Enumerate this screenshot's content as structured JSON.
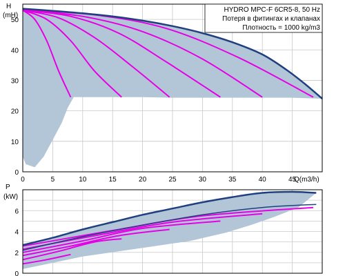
{
  "info_box": {
    "line1": "HYDRO MPC-F 6CR5-8, 50 Hz",
    "line2": "Потеря в фитингах и клапанах",
    "line3": "Плотность = 1000 kg/m3"
  },
  "chart_data": [
    {
      "type": "area",
      "title": "",
      "ylabel_top": "H",
      "ylabel_unit": "(mH)",
      "xlabel": "Q(m3/h)",
      "xlim": [
        0,
        50
      ],
      "ylim": [
        0,
        55
      ],
      "x_ticks": [
        "0",
        "5",
        "10",
        "15",
        "20",
        "25",
        "30",
        "35",
        "40",
        "45"
      ],
      "y_ticks": [
        "0",
        "10",
        "20",
        "30",
        "40",
        "50"
      ],
      "grid": true,
      "colors": {
        "envelope": "#b3c6d8",
        "max_curve": "#1f3f7f",
        "pump_curves": "#e600e6"
      },
      "envelope": {
        "upper": [
          [
            0,
            53.5
          ],
          [
            5,
            52.8
          ],
          [
            10,
            52.0
          ],
          [
            15,
            51.0
          ],
          [
            20,
            49.6
          ],
          [
            25,
            47.8
          ],
          [
            30,
            45.5
          ],
          [
            35,
            42.5
          ],
          [
            40,
            38.5
          ],
          [
            44,
            33.5
          ],
          [
            47,
            29.0
          ],
          [
            50,
            24.0
          ]
        ],
        "lower": [
          [
            50,
            24.0
          ],
          [
            45,
            24.3
          ],
          [
            25,
            24.3
          ],
          [
            20,
            24.5
          ],
          [
            15,
            24.5
          ],
          [
            10,
            24.5
          ],
          [
            8.5,
            24.5
          ],
          [
            7.5,
            21.0
          ],
          [
            6.5,
            16.0
          ],
          [
            5,
            10.5
          ],
          [
            3.5,
            5.0
          ],
          [
            2,
            1.5
          ],
          [
            0.5,
            2.5
          ],
          [
            0,
            5.0
          ]
        ]
      },
      "max_curve": [
        [
          0,
          53.5
        ],
        [
          5,
          52.8
        ],
        [
          10,
          52.0
        ],
        [
          15,
          51.0
        ],
        [
          20,
          49.6
        ],
        [
          25,
          47.8
        ],
        [
          30,
          45.5
        ],
        [
          35,
          42.5
        ],
        [
          40,
          38.5
        ],
        [
          44,
          33.5
        ],
        [
          47,
          29.0
        ],
        [
          50,
          24.0
        ]
      ],
      "series": [
        {
          "values": [
            [
              0,
              53.0
            ],
            [
              2,
              50.0
            ],
            [
              4,
              43.0
            ],
            [
              6,
              33.0
            ],
            [
              8,
              24.5
            ]
          ]
        },
        {
          "values": [
            [
              0,
              53.0
            ],
            [
              4,
              50.0
            ],
            [
              8,
              43.0
            ],
            [
              12,
              33.0
            ],
            [
              16.5,
              24.5
            ]
          ]
        },
        {
          "values": [
            [
              0,
              53.0
            ],
            [
              6,
              50.5
            ],
            [
              12,
              44.0
            ],
            [
              18,
              35.0
            ],
            [
              24.5,
              24.5
            ]
          ]
        },
        {
          "values": [
            [
              0,
              53.0
            ],
            [
              8,
              51.0
            ],
            [
              16,
              45.5
            ],
            [
              24,
              36.0
            ],
            [
              33,
              24.5
            ]
          ]
        },
        {
          "values": [
            [
              0,
              53.0
            ],
            [
              10,
              51.0
            ],
            [
              20,
              46.0
            ],
            [
              30,
              37.0
            ],
            [
              40,
              24.5
            ]
          ]
        },
        {
          "values": [
            [
              0,
              53.0
            ],
            [
              12,
              51.5
            ],
            [
              24,
              47.0
            ],
            [
              36,
              37.5
            ],
            [
              48.5,
              24.5
            ]
          ]
        }
      ]
    },
    {
      "type": "area",
      "title": "",
      "ylabel_top": "P",
      "ylabel_unit": "(kW)",
      "xlabel": "",
      "xlim": [
        0,
        50
      ],
      "ylim": [
        0,
        8
      ],
      "y_ticks": [
        "0",
        "2",
        "4",
        "6"
      ],
      "grid": true,
      "colors": {
        "envelope": "#b3c6d8",
        "max_curve": "#1f3f7f",
        "pump_curves": "#e600e6"
      },
      "envelope": {
        "upper": [
          [
            0,
            2.7
          ],
          [
            5,
            3.4
          ],
          [
            10,
            4.2
          ],
          [
            15,
            4.9
          ],
          [
            20,
            5.6
          ],
          [
            25,
            6.2
          ],
          [
            30,
            6.8
          ],
          [
            35,
            7.3
          ],
          [
            40,
            7.7
          ],
          [
            45,
            7.8
          ],
          [
            49,
            7.7
          ]
        ],
        "lower": [
          [
            49,
            7.7
          ],
          [
            46,
            6.3
          ],
          [
            42,
            5.4
          ],
          [
            38,
            4.6
          ],
          [
            34,
            3.9
          ],
          [
            28,
            3.1
          ],
          [
            22,
            2.6
          ],
          [
            16,
            2.1
          ],
          [
            10,
            1.6
          ],
          [
            5,
            1.0
          ],
          [
            0,
            0.4
          ]
        ]
      },
      "max_curve": [
        [
          0,
          2.7
        ],
        [
          5,
          3.4
        ],
        [
          10,
          4.2
        ],
        [
          15,
          4.9
        ],
        [
          20,
          5.6
        ],
        [
          25,
          6.2
        ],
        [
          30,
          6.8
        ],
        [
          35,
          7.3
        ],
        [
          40,
          7.7
        ],
        [
          45,
          7.8
        ],
        [
          49,
          7.7
        ]
      ],
      "secondary_curve": [
        [
          0,
          2.2
        ],
        [
          10,
          3.5
        ],
        [
          20,
          4.6
        ],
        [
          30,
          5.6
        ],
        [
          40,
          6.3
        ],
        [
          49,
          6.6
        ]
      ],
      "series": [
        {
          "values": [
            [
              0,
              0.9
            ],
            [
              4,
              1.3
            ],
            [
              8,
              1.8
            ]
          ]
        },
        {
          "values": [
            [
              0,
              1.3
            ],
            [
              6,
              2.1
            ],
            [
              12,
              3.0
            ],
            [
              16.5,
              3.3
            ]
          ]
        },
        {
          "values": [
            [
              0,
              1.7
            ],
            [
              8,
              2.6
            ],
            [
              16,
              3.6
            ],
            [
              24.5,
              4.2
            ]
          ]
        },
        {
          "values": [
            [
              0,
              2.0
            ],
            [
              10,
              3.1
            ],
            [
              20,
              4.3
            ],
            [
              33,
              5.0
            ]
          ]
        },
        {
          "values": [
            [
              0,
              2.3
            ],
            [
              12,
              3.6
            ],
            [
              25,
              4.9
            ],
            [
              40,
              5.7
            ]
          ]
        },
        {
          "values": [
            [
              0,
              2.6
            ],
            [
              15,
              4.1
            ],
            [
              30,
              5.5
            ],
            [
              48.5,
              6.3
            ]
          ]
        }
      ]
    }
  ]
}
